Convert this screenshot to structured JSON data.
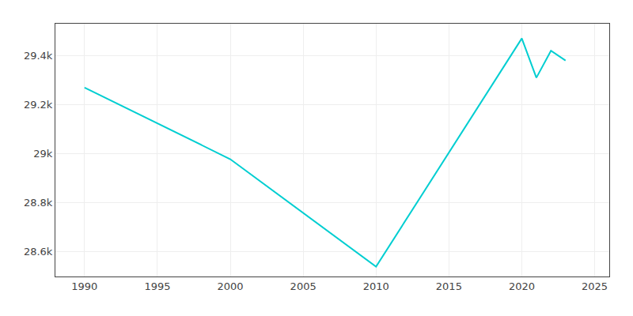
{
  "chart_data": {
    "type": "line",
    "x": [
      1990,
      2000,
      2010,
      2020,
      2021,
      2022,
      2023
    ],
    "values": [
      29270,
      28978,
      28540,
      29470,
      29310,
      29420,
      29380
    ],
    "color": "#00CED1",
    "xlim": [
      1988,
      2026
    ],
    "ylim": [
      28500,
      29530
    ],
    "xticks": [
      1990,
      1995,
      2000,
      2005,
      2010,
      2015,
      2020,
      2025
    ],
    "yticks": [
      {
        "value": 28600,
        "label": "28.6k"
      },
      {
        "value": 28800,
        "label": "28.8k"
      },
      {
        "value": 29000,
        "label": "29k"
      },
      {
        "value": 29200,
        "label": "29.2k"
      },
      {
        "value": 29400,
        "label": "29.4k"
      }
    ],
    "grid": true
  }
}
